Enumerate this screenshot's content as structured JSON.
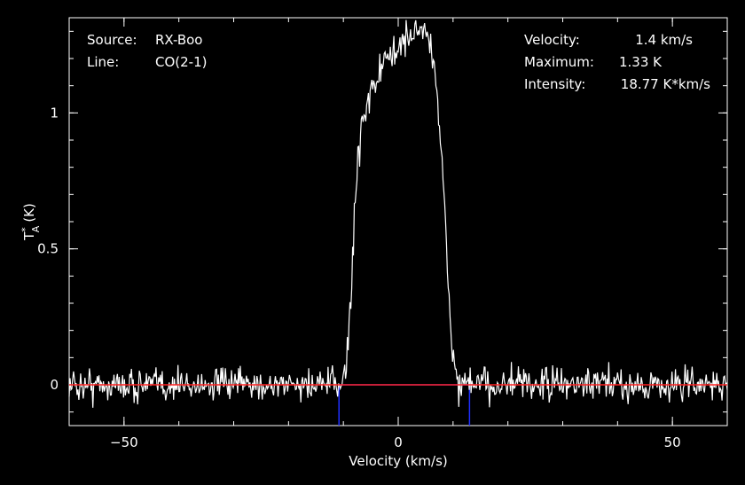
{
  "chart_data": {
    "type": "line",
    "xlabel": "Velocity (km/s)",
    "ylabel_main": "T",
    "ylabel_super": "*",
    "ylabel_sub": "A",
    "ylabel_unit": "(K)",
    "xlim": [
      -60,
      60
    ],
    "ylim": [
      -0.15,
      1.35
    ],
    "xticks": [
      {
        "value": -50,
        "label": "−50"
      },
      {
        "value": 0,
        "label": "0"
      },
      {
        "value": 50,
        "label": "50"
      }
    ],
    "yticks": [
      {
        "value": 0,
        "label": "0"
      },
      {
        "value": 0.5,
        "label": "0.5"
      },
      {
        "value": 1,
        "label": "1"
      }
    ],
    "info_left": [
      {
        "key": "Source:",
        "value": "RX-Boo"
      },
      {
        "key": "Line:",
        "value": "CO(2-1)"
      }
    ],
    "info_right": [
      {
        "key": "Velocity:",
        "value": "1.4 km/s"
      },
      {
        "key": "Maximum:",
        "value": "1.33 K"
      },
      {
        "key": "Intensity:",
        "value": "18.77 K*km/s"
      }
    ],
    "baseline": {
      "y": 0,
      "color": "#ff2020"
    },
    "integration_limits": {
      "values": [
        -10.8,
        13.0
      ],
      "color": "#2030ff"
    },
    "series": [
      {
        "color": "#ffffff",
        "noise_rms": 0.03,
        "profile_points": [
          [
            -60,
            0.0
          ],
          [
            -10.8,
            0.0
          ],
          [
            -9.5,
            0.05
          ],
          [
            -8.7,
            0.3
          ],
          [
            -8.0,
            0.6
          ],
          [
            -7.5,
            0.8
          ],
          [
            -6.8,
            0.95
          ],
          [
            -5.5,
            1.05
          ],
          [
            -3.5,
            1.15
          ],
          [
            -1.0,
            1.22
          ],
          [
            1.5,
            1.27
          ],
          [
            3.0,
            1.3
          ],
          [
            4.5,
            1.31
          ],
          [
            6.0,
            1.25
          ],
          [
            7.0,
            1.1
          ],
          [
            8.0,
            0.82
          ],
          [
            9.0,
            0.4
          ],
          [
            10.0,
            0.1
          ],
          [
            11.0,
            0.0
          ],
          [
            60,
            0.0
          ]
        ]
      }
    ]
  }
}
